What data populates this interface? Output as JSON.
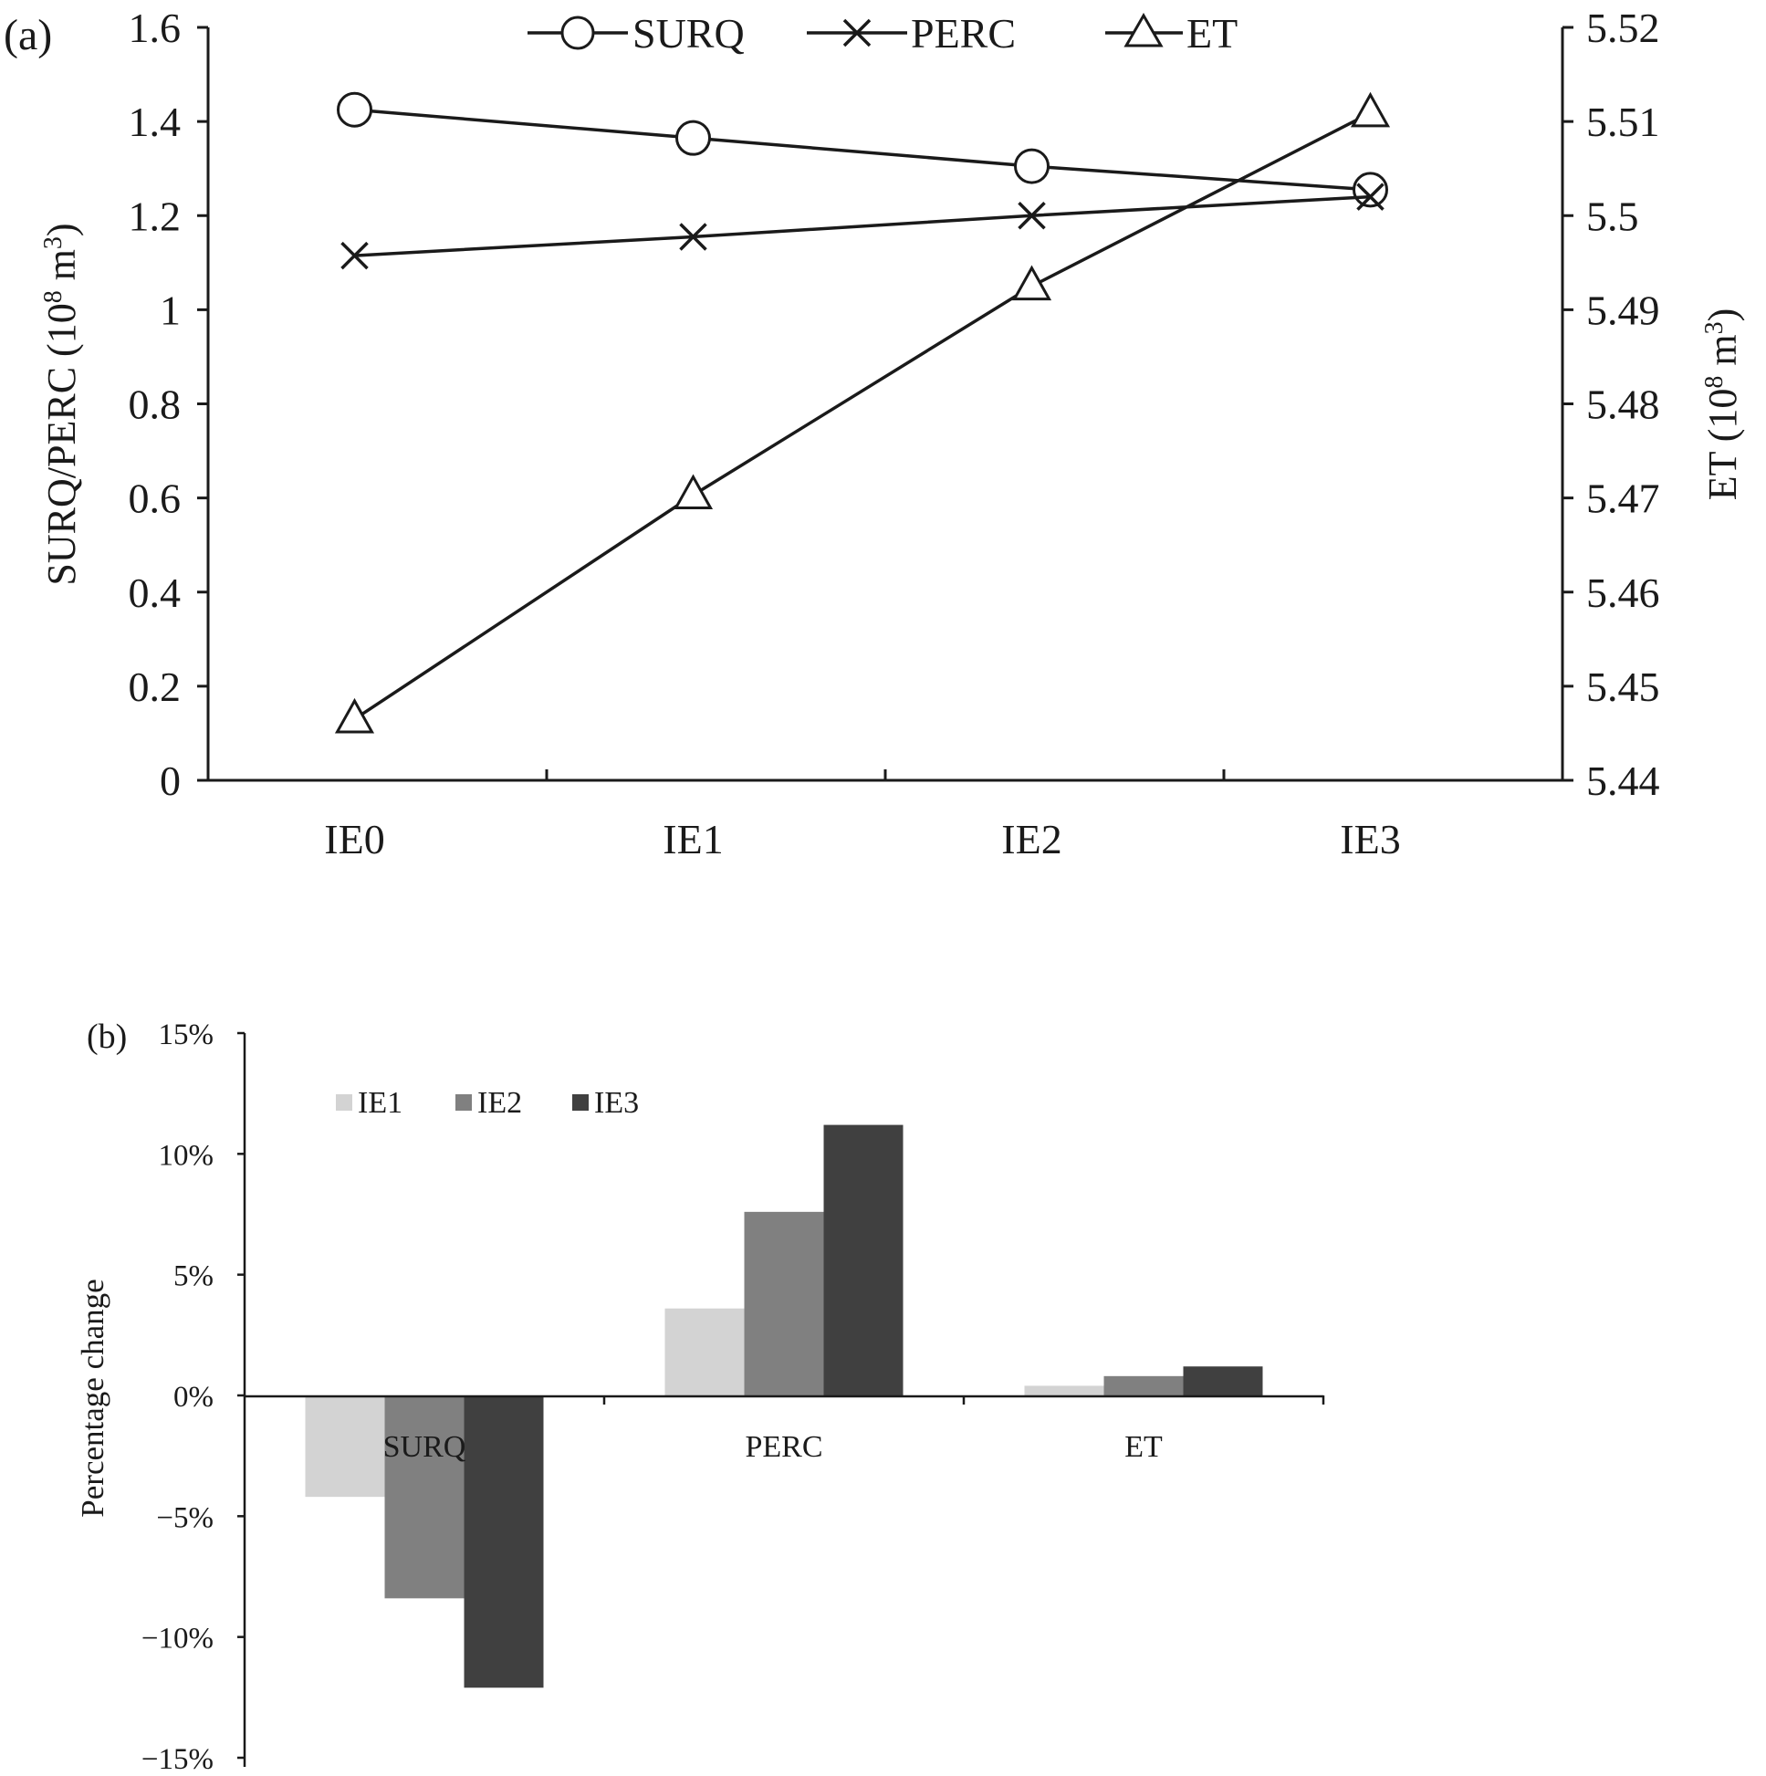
{
  "colors": {
    "ink": "#1a1a1a",
    "ie1": "#d3d3d3",
    "ie2": "#808080",
    "ie3": "#404040"
  },
  "chart_data": [
    {
      "panel_label": "(a)",
      "type": "line",
      "categories": [
        "IE0",
        "IE1",
        "IE2",
        "IE3"
      ],
      "ylabel_left": "SURQ/PERC (10",
      "ylabel_left_sup": "8",
      "ylabel_left_tail": " m",
      "ylabel_left_sup2": "3",
      "ylabel_left_close": ")",
      "ylabel_right": "ET (10",
      "ylabel_right_sup": "8",
      "ylabel_right_tail": " m",
      "ylabel_right_sup2": "3",
      "ylabel_right_close": ")",
      "ylim_left": [
        0,
        1.6
      ],
      "yticks_left": [
        "0",
        "0.2",
        "0.4",
        "0.6",
        "0.8",
        "1",
        "1.2",
        "1.4",
        "1.6"
      ],
      "ylim_right": [
        5.44,
        5.52
      ],
      "yticks_right": [
        "5.44",
        "5.45",
        "5.46",
        "5.47",
        "5.48",
        "5.49",
        "5.5",
        "5.51",
        "5.52"
      ],
      "legend": [
        "SURQ",
        "PERC",
        "ET"
      ],
      "series": [
        {
          "name": "SURQ",
          "axis": "left",
          "marker": "circle",
          "values": [
            1.425,
            1.365,
            1.305,
            1.255
          ]
        },
        {
          "name": "PERC",
          "axis": "left",
          "marker": "x",
          "values": [
            1.115,
            1.155,
            1.2,
            1.24
          ]
        },
        {
          "name": "ET",
          "axis": "right",
          "marker": "triangle",
          "values": [
            5.4465,
            5.4703,
            5.4925,
            5.5109
          ]
        }
      ]
    },
    {
      "panel_label": "(b)",
      "type": "bar",
      "categories": [
        "SURQ",
        "PERC",
        "ET"
      ],
      "ylabel": "Percentage change",
      "ylim": [
        -15,
        15
      ],
      "yticks": [
        "15%",
        "10%",
        "5%",
        "0%",
        "−5%",
        "−10%",
        "−15%"
      ],
      "legend": [
        "IE1",
        "IE2",
        "IE3"
      ],
      "series": [
        {
          "name": "IE1",
          "values": [
            -4.2,
            3.6,
            0.4
          ]
        },
        {
          "name": "IE2",
          "values": [
            -8.4,
            7.6,
            0.8
          ]
        },
        {
          "name": "IE3",
          "values": [
            -12.1,
            11.2,
            1.2
          ]
        }
      ]
    }
  ]
}
